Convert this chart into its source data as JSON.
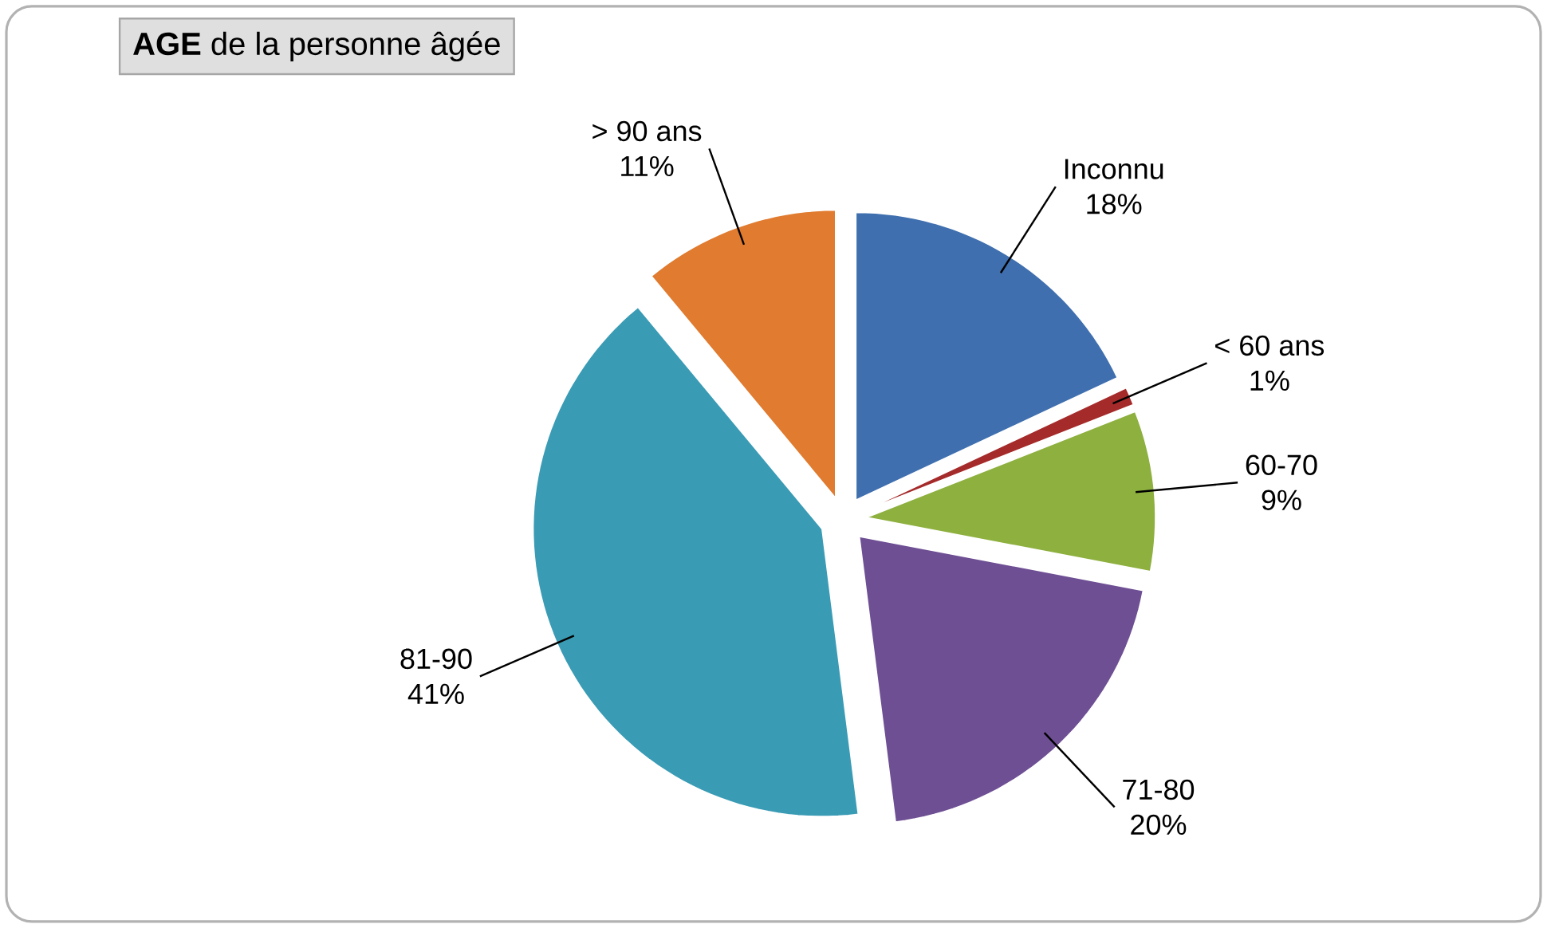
{
  "chart_data": {
    "type": "pie",
    "title": "**AGE** de la personne âgée",
    "categories": [
      "Inconnu",
      "< 60 ans",
      "60-70",
      "71-80",
      "81-90",
      "> 90 ans"
    ],
    "values": [
      18,
      1,
      9,
      20,
      41,
      11
    ],
    "value_labels": [
      "18%",
      "1%",
      "9%",
      "20%",
      "41%",
      "11%"
    ],
    "colors": [
      "#3f6fae",
      "#a52a2a",
      "#8db03f",
      "#6e4f94",
      "#3a9bb5",
      "#e07b2f"
    ]
  }
}
